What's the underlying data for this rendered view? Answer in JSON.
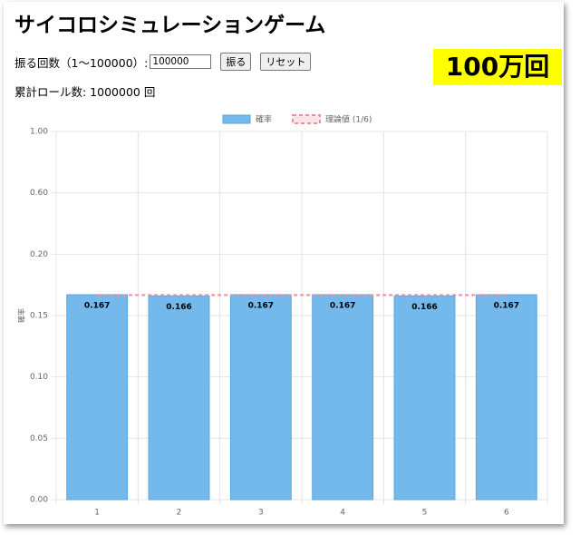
{
  "page": {
    "title": "サイコロシミュレーションゲーム",
    "roll_label": "振る回数（1〜100000）:",
    "input_value": "100000",
    "roll_button": "振る",
    "reset_button": "リセット",
    "total_rolls": "累計ロール数: 1000000 回",
    "badge": "100万回"
  },
  "chart_data": {
    "type": "bar",
    "categories": [
      "1",
      "2",
      "3",
      "4",
      "5",
      "6"
    ],
    "y_label": "確率",
    "series": [
      {
        "name": "確率",
        "color": "#74b9ec",
        "values": [
          0.167,
          0.166,
          0.167,
          0.167,
          0.166,
          0.167
        ]
      },
      {
        "name": "理論値 (1/6)",
        "type": "line",
        "color": "#f08ca0",
        "values": [
          0.1667,
          0.1667,
          0.1667,
          0.1667,
          0.1667,
          0.1667
        ]
      }
    ],
    "ylim": [
      0,
      1
    ],
    "yticks": [
      {
        "value": 0,
        "label": "0.00"
      },
      {
        "value": 0.05,
        "label": "0.05"
      },
      {
        "value": 0.1,
        "label": "0.10"
      },
      {
        "value": 0.15,
        "label": "0.15"
      },
      {
        "value": 0.2,
        "label": "0.20"
      },
      {
        "value": 0.6,
        "label": "0.60"
      },
      {
        "value": 1,
        "label": "1.00"
      }
    ],
    "grid": true,
    "legend": "top"
  }
}
